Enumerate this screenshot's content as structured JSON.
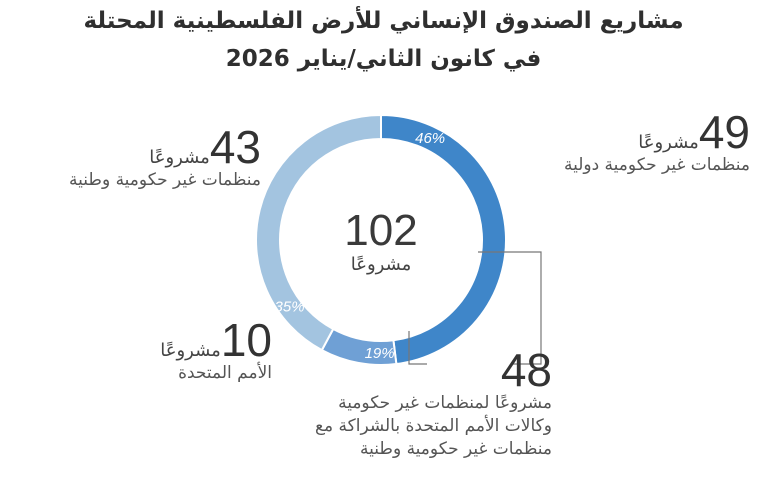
{
  "title": {
    "line1": "مشاريع الصندوق الإنساني للأرض الفلسطينية المحتلة",
    "line2": "في كانون الثاني/يناير 2026"
  },
  "chart_data": {
    "type": "pie",
    "donut": true,
    "total": {
      "value": "102",
      "unit": "مشروعًا"
    },
    "slices": [
      {
        "label": "منظمات غير حكومية دولية",
        "value": 49,
        "percent": "46%",
        "color": "#3f86c9"
      },
      {
        "label": "الأمم المتحدة",
        "value": 10,
        "percent": "19%",
        "color": "#6fa0d5"
      },
      {
        "label": "منظمات غير حكومية وطنية",
        "value": 43,
        "percent": "35%",
        "color": "#a3c4e0"
      }
    ],
    "annotations": [
      {
        "value": "48",
        "unit": "مشروعًا لمنظمات غير حكومية",
        "lines": [
          "وكالات الأمم المتحدة بالشراكة مع",
          "منظمات غير حكومية وطنية"
        ]
      }
    ]
  },
  "labels": {
    "intl": {
      "value": "49",
      "unit": "مشروعًا",
      "desc": "منظمات غير حكومية دولية"
    },
    "national": {
      "value": "43",
      "unit": "مشروعًا",
      "desc": "منظمات غير حكومية وطنية"
    },
    "un": {
      "value": "10",
      "unit": "مشروعًا",
      "desc": "الأمم المتحدة"
    }
  }
}
